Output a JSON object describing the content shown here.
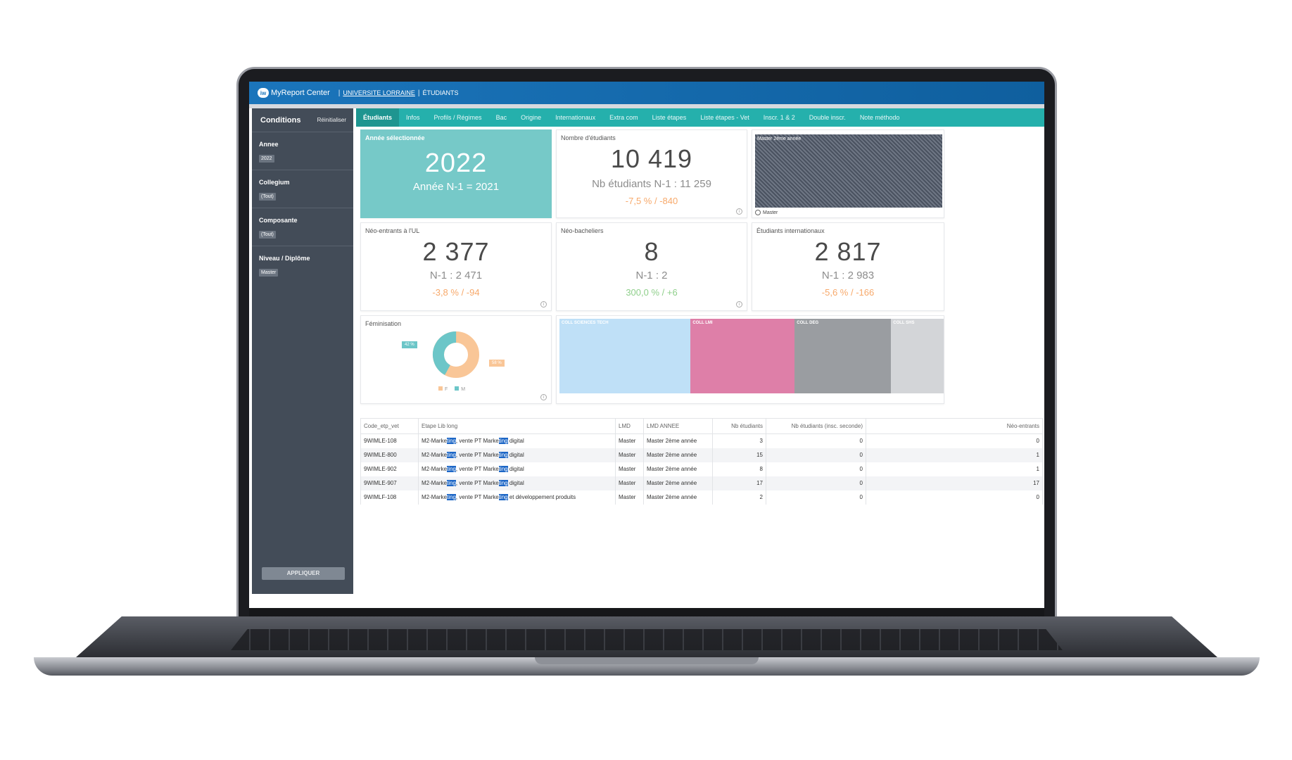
{
  "app": {
    "logo_mark": "iw",
    "logo_text": "MyReport Center",
    "breadcrumb_link": "UNIVERSITE LORRAINE",
    "breadcrumb_current": "ÉTUDIANTS",
    "sep": "|"
  },
  "sidebar": {
    "title": "Conditions",
    "reset": "Réinitialiser",
    "filters": [
      {
        "label": "Annee",
        "value": "2022"
      },
      {
        "label": "Collegium",
        "value": "(Tout)"
      },
      {
        "label": "Composante",
        "value": "(Tout)"
      },
      {
        "label": "Niveau / Diplôme",
        "value": "Master"
      }
    ],
    "apply": "APPLIQUER"
  },
  "tabs": [
    "Étudiants",
    "Infos",
    "Profils / Régimes",
    "Bac",
    "Origine",
    "Internationaux",
    "Extra com",
    "Liste étapes",
    "Liste étapes - Vet",
    "Inscr. 1 & 2",
    "Double inscr.",
    "Note méthodo"
  ],
  "cards": {
    "year": {
      "title": "Année sélectionnée",
      "value": "2022",
      "sub": "Année N-1 = 2021"
    },
    "students": {
      "title": "Nombre d'étudiants",
      "value": "10 419",
      "sub": "Nb étudiants N-1 : 11 259",
      "delta": "-7,5 % / -840"
    },
    "master": {
      "label": "Master 2ème année",
      "legend": "Master"
    },
    "neo_ul": {
      "title": "Néo-entrants à l'UL",
      "value": "2 377",
      "sub": "N-1 : 2 471",
      "delta": "-3,8 % / -94"
    },
    "neo_bac": {
      "title": "Néo-bacheliers",
      "value": "8",
      "sub": "N-1 : 2",
      "delta": "300,0 % / +6"
    },
    "intl": {
      "title": "Étudiants internationaux",
      "value": "2 817",
      "sub": "N-1 : 2 983",
      "delta": "-5,6 % / -166"
    },
    "fem": {
      "title": "Féminisation",
      "pct_m": "42 %",
      "pct_f": "58 %",
      "legend_f": "F",
      "legend_m": "M",
      "color_f": "#f9c697",
      "color_m": "#6cc6c8"
    }
  },
  "treemap": [
    {
      "label": "COLL SCIENCES TECH",
      "color": "#bfe0f7",
      "share": 0.34
    },
    {
      "label": "COLL LMI",
      "color": "#de7fa8",
      "share": 0.27
    },
    {
      "label": "COLL DEG",
      "color": "#9a9da1",
      "share": 0.25
    },
    {
      "label": "COLL SHS",
      "color": "#d3d5d8",
      "share": 0.14
    }
  ],
  "table": {
    "headers": [
      "Code_etp_vet",
      "Etape Lib long",
      "LMD",
      "LMD ANNEE",
      "Nb étudiants",
      "Nb étudiants (insc. seconde)",
      "Néo-entrants"
    ],
    "rows": [
      {
        "code": "9WIMLE-108",
        "lib_a": "M2-Marke",
        "hl1": "ting",
        "lib_b": ", vente PT Marke",
        "hl2": "ting",
        "lib_c": " digital",
        "lmd": "Master",
        "annee": "Master 2ème année",
        "nb": "3",
        "nb2": "0",
        "neo": "0"
      },
      {
        "code": "9WIMLE-800",
        "lib_a": "M2-Marke",
        "hl1": "ting",
        "lib_b": ", vente PT Marke",
        "hl2": "ting",
        "lib_c": " digital",
        "lmd": "Master",
        "annee": "Master 2ème année",
        "nb": "15",
        "nb2": "0",
        "neo": "1"
      },
      {
        "code": "9WIMLE-902",
        "lib_a": "M2-Marke",
        "hl1": "ting",
        "lib_b": ", vente PT Marke",
        "hl2": "ting",
        "lib_c": " digital",
        "lmd": "Master",
        "annee": "Master 2ème année",
        "nb": "8",
        "nb2": "0",
        "neo": "1"
      },
      {
        "code": "9WIMLE-907",
        "lib_a": "M2-Marke",
        "hl1": "ting",
        "lib_b": ", vente PT Marke",
        "hl2": "ting",
        "lib_c": " digital",
        "lmd": "Master",
        "annee": "Master 2ème année",
        "nb": "17",
        "nb2": "0",
        "neo": "17"
      },
      {
        "code": "9WIMLF-108",
        "lib_a": "M2-Marke",
        "hl1": "ting",
        "lib_b": ", vente PT Marke",
        "hl2": "ting",
        "lib_c": " et développement produits",
        "lmd": "Master",
        "annee": "Master 2ème année",
        "nb": "2",
        "nb2": "0",
        "neo": "0"
      }
    ]
  }
}
